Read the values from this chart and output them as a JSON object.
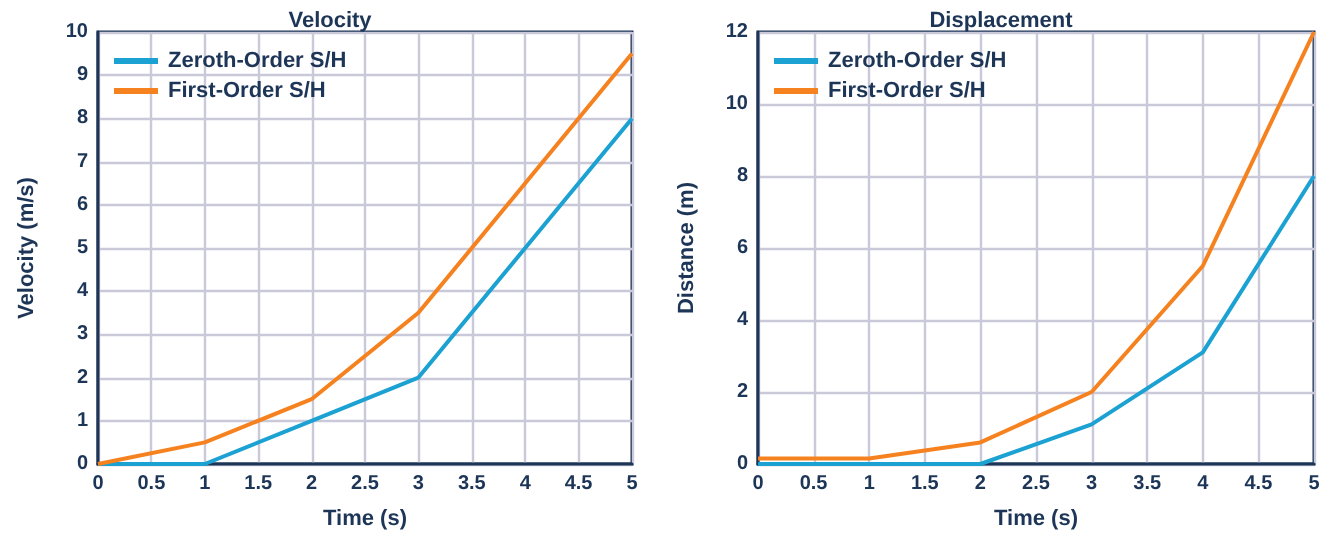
{
  "chart_data": [
    {
      "type": "line",
      "title": "Velocity",
      "xlabel": "Time (s)",
      "ylabel": "Velocity (m/s)",
      "x": [
        0,
        1,
        2,
        3,
        4,
        5
      ],
      "series": [
        {
          "name": "Zeroth-Order S/H",
          "color": "#1ba1d2",
          "values": [
            0,
            0,
            1,
            2,
            5,
            8
          ]
        },
        {
          "name": "First-Order S/H",
          "color": "#f5821f",
          "values": [
            0,
            0.5,
            1.5,
            3.5,
            6.5,
            9.5
          ]
        }
      ],
      "xlim": [
        0,
        5
      ],
      "xticks": [
        0,
        0.5,
        1,
        1.5,
        2,
        2.5,
        3,
        3.5,
        4,
        4.5,
        5
      ],
      "ylim": [
        0,
        10
      ],
      "yticks": [
        0,
        1,
        2,
        3,
        4,
        5,
        6,
        7,
        8,
        9,
        10
      ],
      "grid": true,
      "legend": "top left",
      "marker": "none",
      "line_style": "solid"
    },
    {
      "type": "line",
      "title": "Displacement",
      "xlabel": "Time (s)",
      "ylabel": "Distance (m)",
      "x": [
        0,
        1,
        2,
        3,
        4,
        5
      ],
      "series": [
        {
          "name": "Zeroth-Order S/H",
          "color": "#1ba1d2",
          "values": [
            0,
            0,
            0,
            1.1,
            3.1,
            8
          ]
        },
        {
          "name": "First-Order S/H",
          "color": "#f5821f",
          "values": [
            0.15,
            0.15,
            0.6,
            2,
            5.5,
            12
          ]
        }
      ],
      "xlim": [
        0,
        5
      ],
      "xticks": [
        0,
        0.5,
        1,
        1.5,
        2,
        2.5,
        3,
        3.5,
        4,
        4.5,
        5
      ],
      "ylim": [
        0,
        12
      ],
      "yticks": [
        0,
        2,
        4,
        6,
        8,
        10,
        12
      ],
      "grid": true,
      "legend": "top left",
      "marker": "none",
      "line_style": "solid"
    }
  ]
}
